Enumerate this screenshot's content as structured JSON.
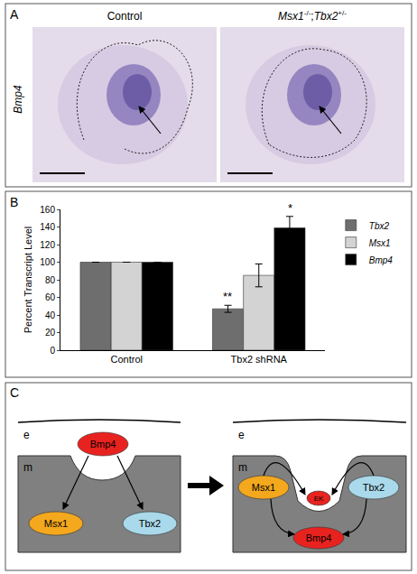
{
  "panel_a": {
    "label": "A",
    "row_label": "Bmp4",
    "columns": [
      {
        "title_parts": [
          {
            "text": "Control"
          }
        ]
      },
      {
        "title_parts": [
          {
            "text": "Msx1",
            "sup": "-/-",
            "italic": true
          },
          {
            "text": ";"
          },
          {
            "text": "Tbx2",
            "sup": "+/-",
            "italic": true
          }
        ]
      }
    ]
  },
  "panel_b": {
    "label": "B"
  },
  "chart_data": {
    "type": "bar",
    "categories": [
      "Control",
      "Tbx2 shRNA"
    ],
    "series": [
      {
        "name": "Tbx2",
        "color": "#6e6e6e",
        "values": [
          100,
          47
        ],
        "errors": [
          0,
          4
        ]
      },
      {
        "name": "Msx1",
        "color": "#d3d3d3",
        "values": [
          100,
          85
        ],
        "errors": [
          0,
          13
        ]
      },
      {
        "name": "Bmp4",
        "color": "#000000",
        "values": [
          100,
          139
        ],
        "errors": [
          0,
          13
        ]
      }
    ],
    "y_label": "Percent Transcript Level",
    "ylim": [
      0,
      160
    ],
    "yticks": [
      0,
      20,
      40,
      60,
      80,
      100,
      120,
      140,
      160
    ],
    "grid": false,
    "legend": "right",
    "annotations": [
      {
        "category": "Tbx2 shRNA",
        "series": "Tbx2",
        "text": "**"
      },
      {
        "category": "Tbx2 shRNA",
        "series": "Bmp4",
        "text": "*"
      }
    ]
  },
  "panel_c": {
    "label": "C",
    "before": {
      "tissue_labels": [
        "e",
        "m"
      ],
      "nodes": [
        {
          "text": "Bmp4",
          "color": "#e8231f"
        },
        {
          "text": "Msx1",
          "color": "#f4a81d"
        },
        {
          "text": "Tbx2",
          "color": "#a9d9ea"
        }
      ]
    },
    "after": {
      "tissue_labels": [
        "e",
        "m"
      ],
      "nodes": [
        {
          "text": "Msx1",
          "color": "#f4a81d"
        },
        {
          "text": "EK",
          "color": "#e8231f"
        },
        {
          "text": "Tbx2",
          "color": "#a9d9ea"
        },
        {
          "text": "Bmp4",
          "color": "#e8231f"
        }
      ]
    }
  }
}
